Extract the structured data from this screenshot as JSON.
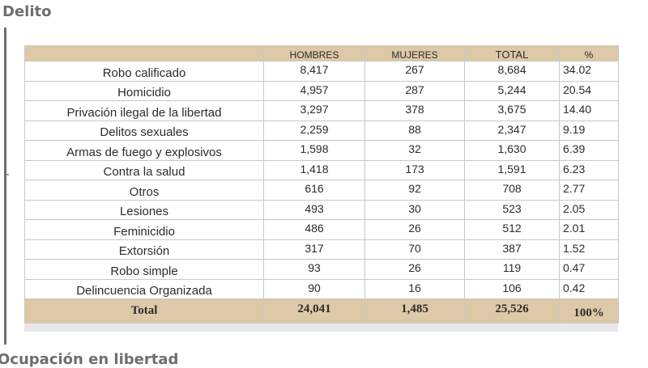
{
  "heading": "Delito",
  "bottom_heading": "Ocupación en libertad",
  "table": {
    "columns": [
      "",
      "HOMBRES",
      "MUJERES",
      "TOTAL",
      "%"
    ],
    "rows": [
      {
        "delito": "Robo calificado",
        "hombres": "8,417",
        "mujeres": "267",
        "total": "8,684",
        "pct": "34.02"
      },
      {
        "delito": "Homicidio",
        "hombres": "4,957",
        "mujeres": "287",
        "total": "5,244",
        "pct": "20.54"
      },
      {
        "delito": "Privación ilegal de la libertad",
        "hombres": "3,297",
        "mujeres": "378",
        "total": "3,675",
        "pct": "14.40"
      },
      {
        "delito": "Delitos sexuales",
        "hombres": "2,259",
        "mujeres": "88",
        "total": "2,347",
        "pct": "9.19"
      },
      {
        "delito": "Armas de fuego y explosivos",
        "hombres": "1,598",
        "mujeres": "32",
        "total": "1,630",
        "pct": "6.39"
      },
      {
        "delito": "Contra la salud",
        "hombres": "1,418",
        "mujeres": "173",
        "total": "1,591",
        "pct": "6.23"
      },
      {
        "delito": "Otros",
        "hombres": "616",
        "mujeres": "92",
        "total": "708",
        "pct": "2.77"
      },
      {
        "delito": "Lesiones",
        "hombres": "493",
        "mujeres": "30",
        "total": "523",
        "pct": "2.05"
      },
      {
        "delito": "Feminicidio",
        "hombres": "486",
        "mujeres": "26",
        "total": "512",
        "pct": "2.01"
      },
      {
        "delito": "Extorsión",
        "hombres": "317",
        "mujeres": "70",
        "total": "387",
        "pct": "1.52"
      },
      {
        "delito": "Robo simple",
        "hombres": "93",
        "mujeres": "26",
        "total": "119",
        "pct": "0.47"
      },
      {
        "delito": "Delincuencia Organizada",
        "hombres": "90",
        "mujeres": "16",
        "total": "106",
        "pct": "0.42"
      }
    ],
    "total": {
      "label": "Total",
      "hombres": "24,041",
      "mujeres": "1,485",
      "total": "25,526",
      "pct": "100%"
    }
  },
  "colors": {
    "header_fill": "#ddc9a7",
    "border": "#c8c8c8",
    "heading_text": "#6e6e6e"
  }
}
